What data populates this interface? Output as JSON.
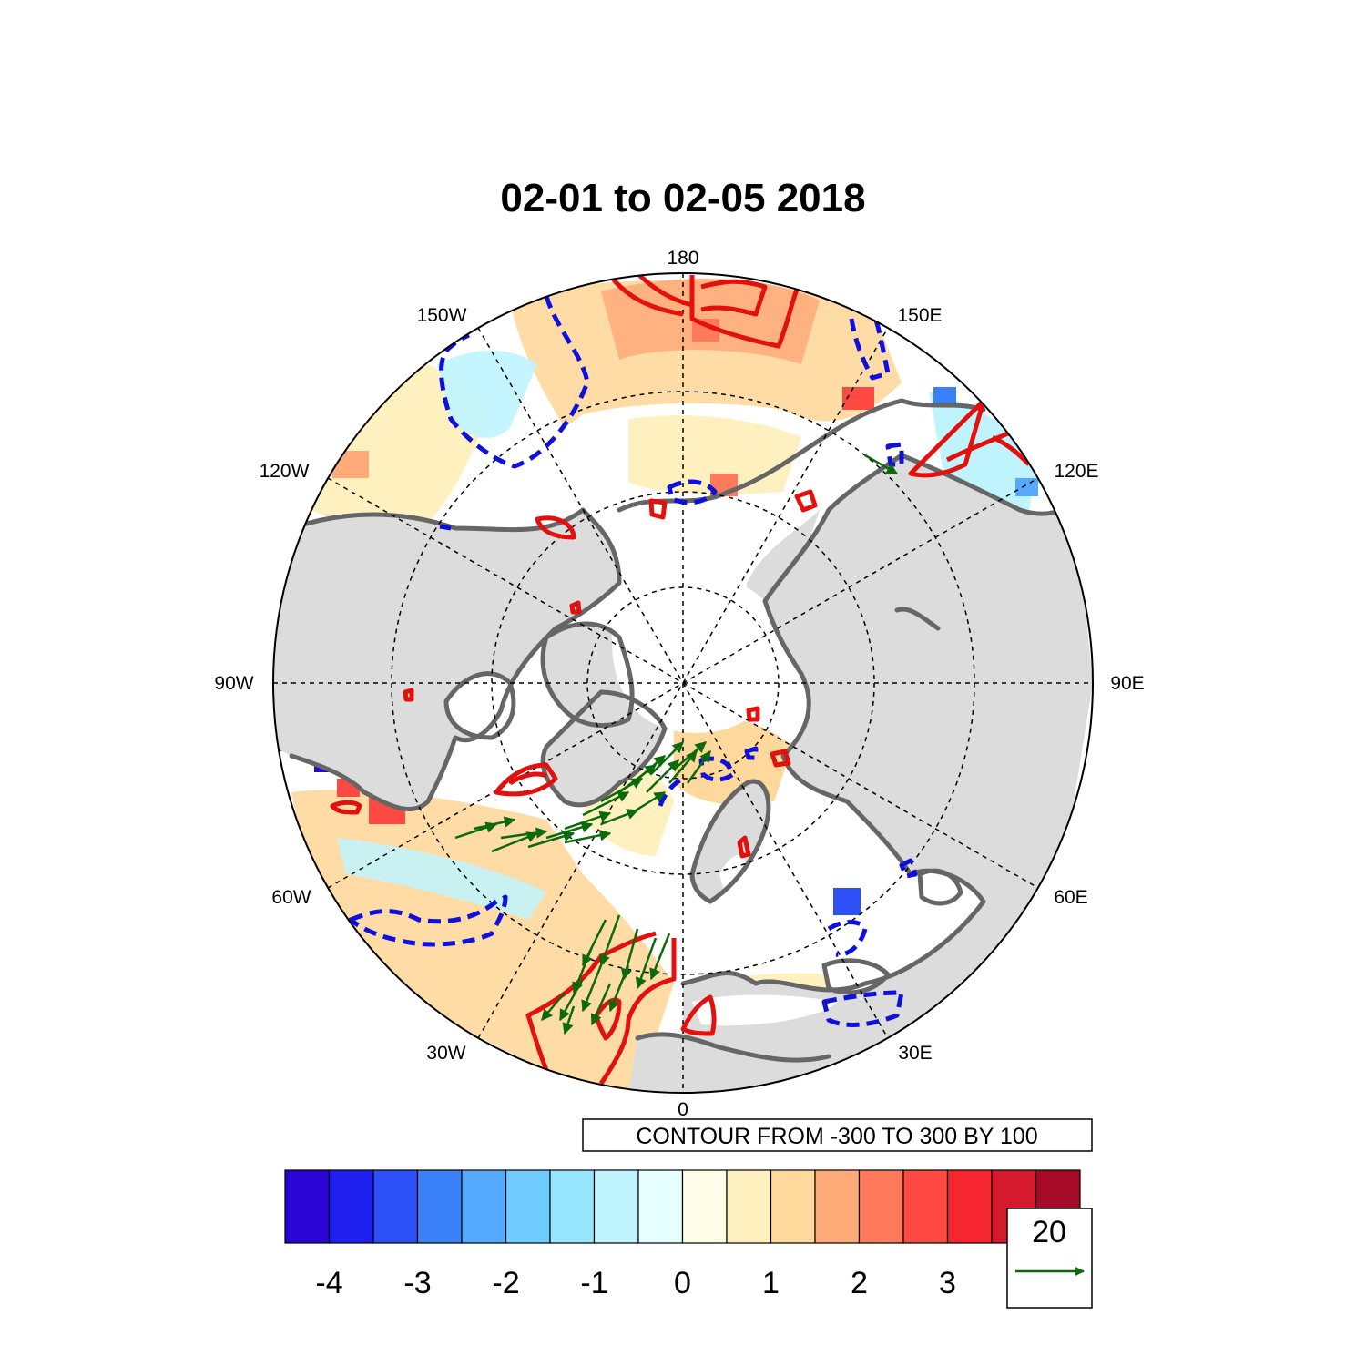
{
  "title": "02-01 to 02-05 2018",
  "longitude_labels": [
    {
      "key": "lon-180",
      "text": "180"
    },
    {
      "key": "lon-150e",
      "text": "150E"
    },
    {
      "key": "lon-120e",
      "text": "120E"
    },
    {
      "key": "lon-90e",
      "text": "90E"
    },
    {
      "key": "lon-60e",
      "text": "60E"
    },
    {
      "key": "lon-30e",
      "text": "30E"
    },
    {
      "key": "lon-0",
      "text": "0"
    },
    {
      "key": "lon-30w",
      "text": "30W"
    },
    {
      "key": "lon-60w",
      "text": "60W"
    },
    {
      "key": "lon-90w",
      "text": "90W"
    },
    {
      "key": "lon-120w",
      "text": "120W"
    },
    {
      "key": "lon-150w",
      "text": "150W"
    }
  ],
  "contour_info": "CONTOUR FROM -300 TO 300 BY 100",
  "colorbar": {
    "colors": [
      "#2a04d4",
      "#1f1ff0",
      "#2d50f6",
      "#3a80f6",
      "#55aaff",
      "#70ccff",
      "#96e6ff",
      "#bff4ff",
      "#e6ffff",
      "#fffde8",
      "#fff0c0",
      "#ffd89c",
      "#ffaa78",
      "#ff7a5a",
      "#ff4a44",
      "#f5262e",
      "#d41a2c",
      "#a50a26"
    ],
    "tick_labels": [
      "-4",
      "-3",
      "-2",
      "-1",
      "0",
      "1",
      "2",
      "3"
    ]
  },
  "reference_vector": {
    "magnitude": "20",
    "color": "#0b6b0b"
  },
  "colors": {
    "land": "#dcdcdc",
    "coastline": "#666666",
    "positive_contour": "#e3110e",
    "negative_contour": "#1010dd",
    "wind_vectors": "#0b6b0b"
  }
}
